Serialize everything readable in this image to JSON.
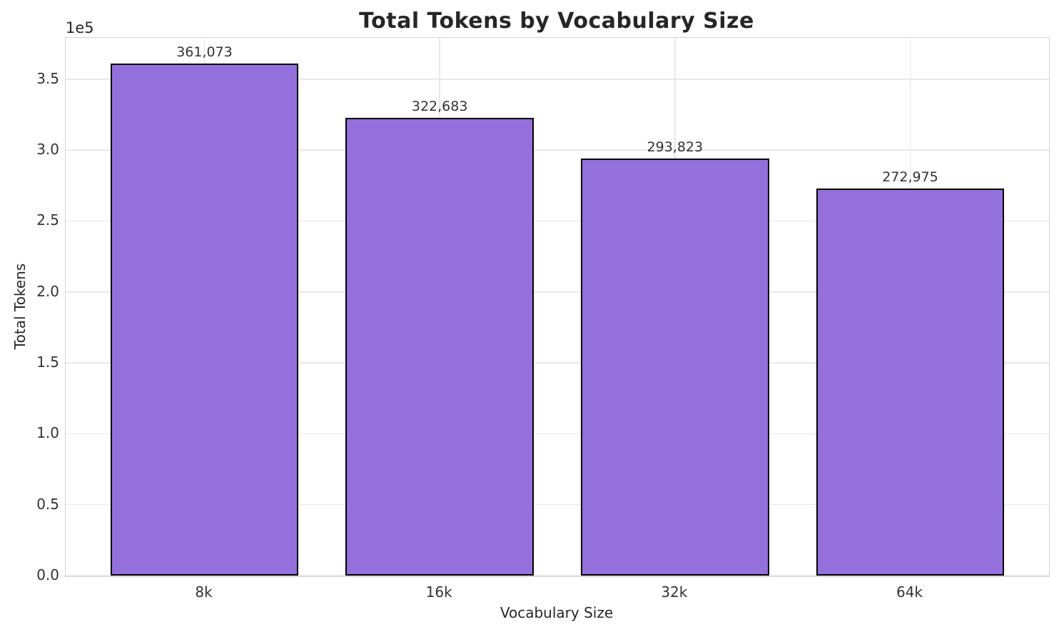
{
  "chart_data": {
    "type": "bar",
    "title": "Total Tokens by Vocabulary Size",
    "xlabel": "Vocabulary Size",
    "ylabel": "Total Tokens",
    "y_offset_text": "1e5",
    "categories": [
      "8k",
      "16k",
      "32k",
      "64k"
    ],
    "values": [
      361073,
      322683,
      293823,
      272975
    ],
    "value_labels": [
      "361,073",
      "322,683",
      "293,823",
      "272,975"
    ],
    "ytick_values": [
      0,
      50000,
      100000,
      150000,
      200000,
      250000,
      300000,
      350000
    ],
    "ytick_labels": [
      "0.0",
      "0.5",
      "1.0",
      "1.5",
      "2.0",
      "2.5",
      "3.0",
      "3.5"
    ],
    "ylim": [
      0,
      379127
    ],
    "xlim": [
      -0.59,
      3.59
    ],
    "bar_width": 0.8,
    "grid": true,
    "legend_position": "none",
    "colors": {
      "bar_fill": "#9370DB",
      "bar_edge": "#000000",
      "text": "#262626"
    }
  }
}
